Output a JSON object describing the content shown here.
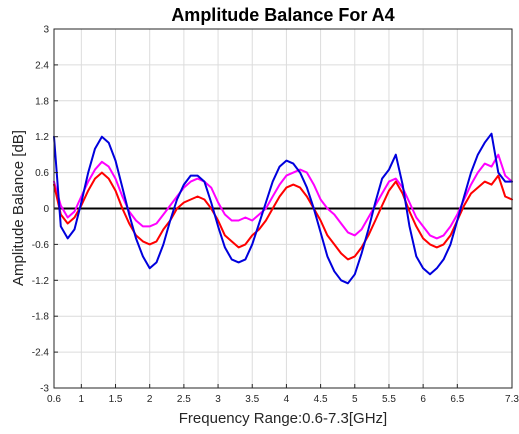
{
  "chart_data": {
    "type": "line",
    "title": "Amplitude Balance For A4",
    "xlabel": "Frequency Range:0.6-7.3[GHz]",
    "ylabel": "Amplitude Balance [dB]",
    "xlim": [
      0.6,
      7.3
    ],
    "ylim": [
      -3,
      3
    ],
    "xticks": [
      0.6,
      1,
      1.5,
      2,
      2.5,
      3,
      3.5,
      4,
      4.5,
      5,
      5.5,
      6,
      6.5,
      7.3
    ],
    "xtick_labels": [
      "0.6",
      "1",
      "1.5",
      "2",
      "2.5",
      "3",
      "3.5",
      "4",
      "4.5",
      "5",
      "5.5",
      "6",
      "6.5",
      "7.3"
    ],
    "yticks": [
      -3,
      -2.4,
      -1.8,
      -1.2,
      -0.6,
      0,
      0.6,
      1.2,
      1.8,
      2.4,
      3
    ],
    "ytick_labels": [
      "-3",
      "-2.4",
      "-1.8",
      "-1.2",
      "-0.6",
      "0",
      "0.6",
      "1.2",
      "1.8",
      "2.4",
      "3"
    ],
    "grid": true,
    "reference_line": {
      "y": 0,
      "color": "#000000"
    },
    "series": [
      {
        "color": "#ff00ff",
        "x": [
          0.6,
          0.7,
          0.8,
          0.9,
          1.0,
          1.1,
          1.2,
          1.3,
          1.4,
          1.5,
          1.6,
          1.7,
          1.8,
          1.9,
          2.0,
          2.1,
          2.2,
          2.3,
          2.4,
          2.5,
          2.6,
          2.7,
          2.8,
          2.9,
          3.0,
          3.1,
          3.2,
          3.3,
          3.4,
          3.5,
          3.6,
          3.7,
          3.8,
          3.9,
          4.0,
          4.1,
          4.2,
          4.3,
          4.4,
          4.5,
          4.6,
          4.7,
          4.8,
          4.9,
          5.0,
          5.1,
          5.2,
          5.3,
          5.4,
          5.5,
          5.6,
          5.7,
          5.8,
          5.9,
          6.0,
          6.1,
          6.2,
          6.3,
          6.4,
          6.5,
          6.6,
          6.7,
          6.8,
          6.9,
          7.0,
          7.1,
          7.2,
          7.3
        ],
        "y": [
          0.45,
          0.05,
          -0.15,
          -0.05,
          0.2,
          0.45,
          0.65,
          0.78,
          0.7,
          0.5,
          0.2,
          -0.05,
          -0.2,
          -0.3,
          -0.3,
          -0.25,
          -0.1,
          0.05,
          0.2,
          0.35,
          0.45,
          0.5,
          0.45,
          0.35,
          0.1,
          -0.1,
          -0.2,
          -0.2,
          -0.15,
          -0.2,
          -0.1,
          0.0,
          0.2,
          0.4,
          0.55,
          0.6,
          0.65,
          0.6,
          0.4,
          0.15,
          0.0,
          -0.1,
          -0.25,
          -0.4,
          -0.45,
          -0.35,
          -0.15,
          0.05,
          0.25,
          0.45,
          0.5,
          0.35,
          0.1,
          -0.15,
          -0.3,
          -0.45,
          -0.5,
          -0.45,
          -0.3,
          -0.1,
          0.15,
          0.4,
          0.6,
          0.75,
          0.7,
          0.9,
          0.55,
          0.45
        ]
      },
      {
        "color": "#ff0000",
        "x": [
          0.6,
          0.7,
          0.8,
          0.9,
          1.0,
          1.1,
          1.2,
          1.3,
          1.4,
          1.5,
          1.6,
          1.7,
          1.8,
          1.9,
          2.0,
          2.1,
          2.2,
          2.3,
          2.4,
          2.5,
          2.6,
          2.7,
          2.8,
          2.9,
          3.0,
          3.1,
          3.2,
          3.3,
          3.4,
          3.5,
          3.6,
          3.7,
          3.8,
          3.9,
          4.0,
          4.1,
          4.2,
          4.3,
          4.4,
          4.5,
          4.6,
          4.7,
          4.8,
          4.9,
          5.0,
          5.1,
          5.2,
          5.3,
          5.4,
          5.5,
          5.6,
          5.7,
          5.8,
          5.9,
          6.0,
          6.1,
          6.2,
          6.3,
          6.4,
          6.5,
          6.6,
          6.7,
          6.8,
          6.9,
          7.0,
          7.1,
          7.2,
          7.3
        ],
        "y": [
          0.4,
          -0.1,
          -0.25,
          -0.15,
          0.05,
          0.3,
          0.5,
          0.6,
          0.5,
          0.3,
          0.0,
          -0.25,
          -0.45,
          -0.55,
          -0.6,
          -0.55,
          -0.35,
          -0.2,
          0.0,
          0.1,
          0.15,
          0.2,
          0.15,
          0.0,
          -0.2,
          -0.45,
          -0.55,
          -0.65,
          -0.6,
          -0.45,
          -0.35,
          -0.2,
          0.0,
          0.2,
          0.35,
          0.4,
          0.35,
          0.2,
          0.0,
          -0.2,
          -0.45,
          -0.6,
          -0.75,
          -0.85,
          -0.8,
          -0.65,
          -0.45,
          -0.2,
          0.05,
          0.3,
          0.45,
          0.25,
          -0.05,
          -0.3,
          -0.5,
          -0.6,
          -0.65,
          -0.6,
          -0.45,
          -0.2,
          0.05,
          0.25,
          0.35,
          0.45,
          0.4,
          0.55,
          0.2,
          0.15
        ]
      },
      {
        "color": "#0000dd",
        "x": [
          0.6,
          0.7,
          0.8,
          0.9,
          1.0,
          1.1,
          1.2,
          1.3,
          1.4,
          1.5,
          1.6,
          1.7,
          1.8,
          1.9,
          2.0,
          2.1,
          2.2,
          2.3,
          2.4,
          2.5,
          2.6,
          2.7,
          2.8,
          2.9,
          3.0,
          3.1,
          3.2,
          3.3,
          3.4,
          3.5,
          3.6,
          3.7,
          3.8,
          3.9,
          4.0,
          4.1,
          4.2,
          4.3,
          4.4,
          4.5,
          4.6,
          4.7,
          4.8,
          4.9,
          5.0,
          5.1,
          5.2,
          5.3,
          5.4,
          5.5,
          5.6,
          5.7,
          5.8,
          5.9,
          6.0,
          6.1,
          6.2,
          6.3,
          6.4,
          6.5,
          6.6,
          6.7,
          6.8,
          6.9,
          7.0,
          7.1,
          7.2,
          7.3
        ],
        "y": [
          1.2,
          -0.3,
          -0.5,
          -0.35,
          0.1,
          0.6,
          1.0,
          1.2,
          1.1,
          0.8,
          0.35,
          -0.1,
          -0.5,
          -0.8,
          -1.0,
          -0.9,
          -0.6,
          -0.2,
          0.15,
          0.4,
          0.55,
          0.55,
          0.45,
          0.1,
          -0.3,
          -0.65,
          -0.85,
          -0.9,
          -0.85,
          -0.6,
          -0.25,
          0.1,
          0.45,
          0.7,
          0.8,
          0.75,
          0.6,
          0.35,
          0.0,
          -0.4,
          -0.8,
          -1.05,
          -1.2,
          -1.25,
          -1.1,
          -0.75,
          -0.35,
          0.1,
          0.5,
          0.65,
          0.9,
          0.4,
          -0.3,
          -0.8,
          -1.0,
          -1.1,
          -1.0,
          -0.85,
          -0.6,
          -0.2,
          0.2,
          0.6,
          0.9,
          1.1,
          1.25,
          0.6,
          0.45,
          0.45
        ]
      }
    ]
  }
}
